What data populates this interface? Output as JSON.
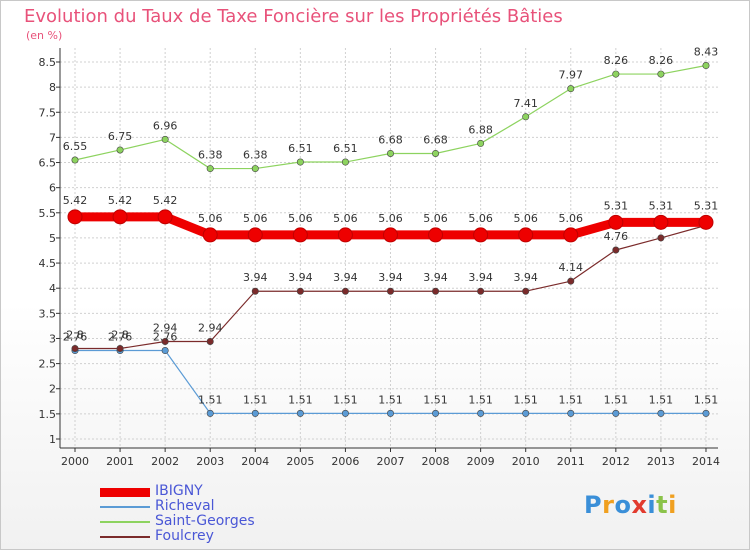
{
  "title": "Evolution du Taux de Taxe Foncière sur les Propriétés Bâties",
  "unit_label": "(en %)",
  "logo_text": "Proxiti",
  "chart_data": {
    "type": "line",
    "x": [
      "2000",
      "2001",
      "2002",
      "2003",
      "2004",
      "2005",
      "2006",
      "2007",
      "2008",
      "2009",
      "2010",
      "2011",
      "2012",
      "2013",
      "2014"
    ],
    "ylim": [
      1,
      8.5
    ],
    "yticks": [
      "1",
      "1.5",
      "2",
      "2.5",
      "3",
      "3.5",
      "4",
      "4.5",
      "5",
      "5.5",
      "6",
      "6.5",
      "7",
      "7.5",
      "8",
      "8.5"
    ],
    "grid": true,
    "legend_position": "bottom-left",
    "series": [
      {
        "name": "IBIGNY",
        "color": "#ee0000",
        "values": [
          5.42,
          5.42,
          5.42,
          5.06,
          5.06,
          5.06,
          5.06,
          5.06,
          5.06,
          5.06,
          5.06,
          5.06,
          5.31,
          5.31,
          5.31
        ],
        "labels": [
          "5.42",
          "5.42",
          "5.42",
          "5.06",
          "5.06",
          "5.06",
          "5.06",
          "5.06",
          "5.06",
          "5.06",
          "5.06",
          "5.06",
          "5.31",
          "5.31",
          "5.31"
        ]
      },
      {
        "name": "Richeval",
        "color": "#5b9bd5",
        "values": [
          2.76,
          2.76,
          2.76,
          1.51,
          1.51,
          1.51,
          1.51,
          1.51,
          1.51,
          1.51,
          1.51,
          1.51,
          1.51,
          1.51,
          1.51
        ],
        "labels": [
          "2.76",
          "2.76",
          "2.76",
          "1.51",
          "1.51",
          "1.51",
          "1.51",
          "1.51",
          "1.51",
          "1.51",
          "1.51",
          "1.51",
          "1.51",
          "1.51",
          "1.51"
        ]
      },
      {
        "name": "Saint-Georges",
        "color": "#8dd35f",
        "values": [
          6.55,
          6.75,
          6.96,
          6.38,
          6.38,
          6.51,
          6.51,
          6.68,
          6.68,
          6.88,
          7.41,
          7.97,
          8.26,
          8.26,
          8.43
        ],
        "labels": [
          "6.55",
          "6.75",
          "6.96",
          "6.38",
          "6.38",
          "6.51",
          "6.51",
          "6.68",
          "6.68",
          "6.88",
          "7.41",
          "7.97",
          "8.26",
          "8.26",
          "8.43"
        ]
      },
      {
        "name": "Foulcrey",
        "color": "#7b2b2b",
        "values": [
          2.8,
          2.8,
          2.94,
          2.94,
          3.94,
          3.94,
          3.94,
          3.94,
          3.94,
          3.94,
          3.94,
          4.14,
          4.76,
          5.0,
          5.25
        ],
        "labels": [
          "2.8",
          "2.8",
          "2.94",
          "2.94",
          "3.94",
          "3.94",
          "3.94",
          "3.94",
          "3.94",
          "3.94",
          "3.94",
          "4.14",
          "4.76",
          "",
          ""
        ]
      }
    ]
  }
}
